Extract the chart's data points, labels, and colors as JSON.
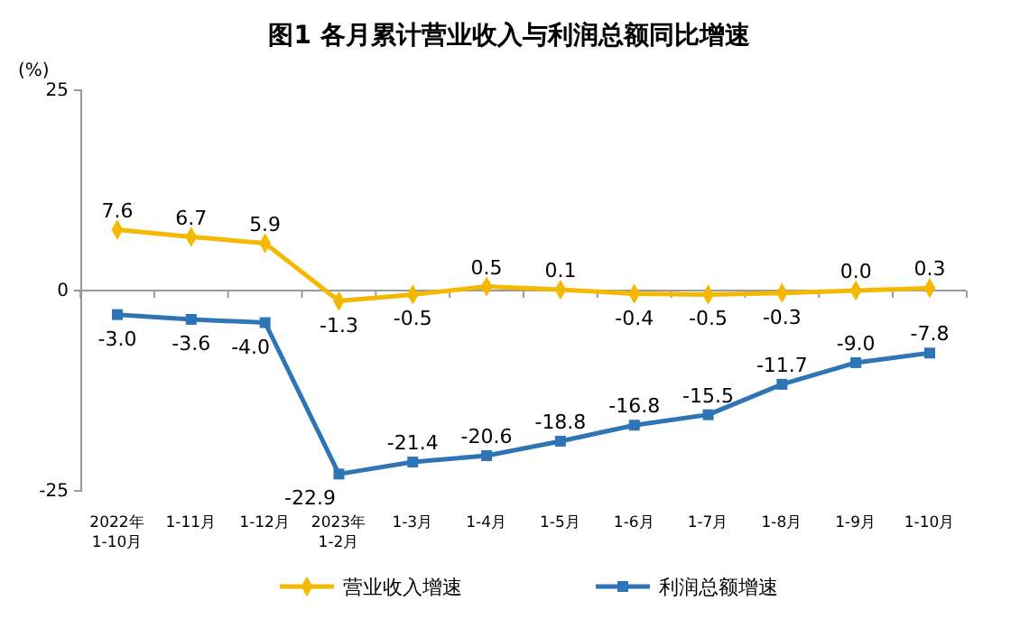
{
  "chart_data": {
    "type": "line",
    "title": "图1  各月累计营业收入与利润总额同比增速",
    "ylabel": "(%)",
    "categories": [
      "2022年\n1-10月",
      "1-11月",
      "1-12月",
      "2023年\n1-2月",
      "1-3月",
      "1-4月",
      "1-5月",
      "1-6月",
      "1-7月",
      "1-8月",
      "1-9月",
      "1-10月"
    ],
    "series": [
      {
        "name": "营业收入增速",
        "color": "#f5b800",
        "marker": "diamond",
        "values": [
          7.6,
          6.7,
          5.9,
          -1.3,
          -0.5,
          0.5,
          0.1,
          -0.4,
          -0.5,
          -0.3,
          0.0,
          0.3
        ],
        "value_labels": [
          "7.6",
          "6.7",
          "5.9",
          "-1.3",
          "-0.5",
          "0.5",
          "0.1",
          "-0.4",
          "-0.5",
          "-0.3",
          "0.0",
          "0.3"
        ]
      },
      {
        "name": "利润总额增速",
        "color": "#2e75b6",
        "marker": "square",
        "values": [
          -3.0,
          -3.6,
          -4.0,
          -22.9,
          -21.4,
          -20.6,
          -18.8,
          -16.8,
          -15.5,
          -11.7,
          -9.0,
          -7.8
        ],
        "value_labels": [
          "-3.0",
          "-3.6",
          "-4.0",
          "-22.9",
          "-21.4",
          "-20.6",
          "-18.8",
          "-16.8",
          "-15.5",
          "-11.7",
          "-9.0",
          "-7.8"
        ]
      }
    ],
    "ylim": [
      -25,
      25
    ],
    "yticks": [
      -25,
      0,
      25
    ],
    "legend": "bottom"
  }
}
